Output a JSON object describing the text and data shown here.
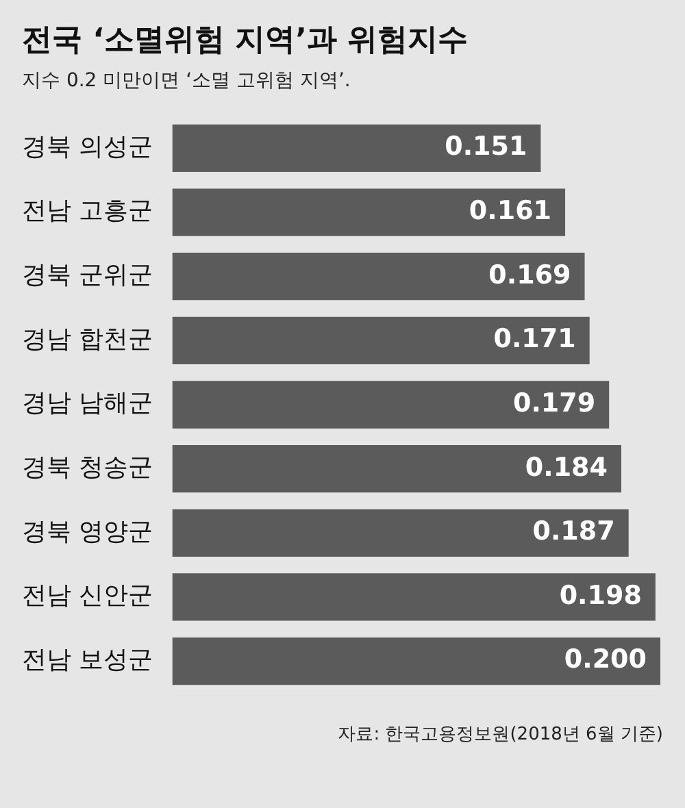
{
  "chart_data": {
    "type": "bar",
    "orientation": "horizontal",
    "title": "전국 ‘소멸위험 지역’과 위험지수",
    "subtitle": "지수 0.2 미만이면 ‘소멸 고위험 지역’.",
    "categories": [
      "경북 의성군",
      "전남 고흥군",
      "경북 군위군",
      "경남 합천군",
      "경남 남해군",
      "경북 청송군",
      "경북 영양군",
      "전남 신안군",
      "전남 보성군"
    ],
    "values": [
      0.151,
      0.161,
      0.169,
      0.171,
      0.179,
      0.184,
      0.187,
      0.198,
      0.2
    ],
    "value_labels": [
      "0.151",
      "0.161",
      "0.169",
      "0.171",
      "0.179",
      "0.184",
      "0.187",
      "0.198",
      "0.200"
    ],
    "color": "#5b5b5b",
    "xlim": [
      0,
      0.2
    ],
    "tick_labels": "y",
    "legend": false,
    "annotations": [
      "자료: 한국고용정보원(2018년 6월 기준)"
    ]
  }
}
